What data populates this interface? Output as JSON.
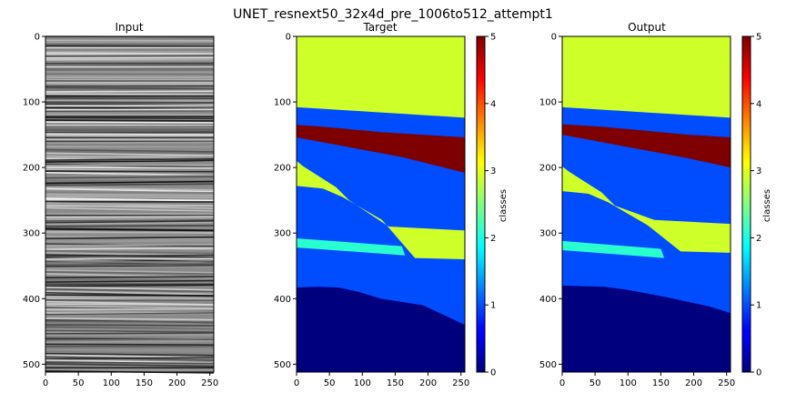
{
  "figure": {
    "title": "UNET_resnext50_32x4d_pre_1006to512_attempt1"
  },
  "chart_data": [
    {
      "type": "heatmap",
      "title": "Input",
      "xlabel": "",
      "ylabel": "",
      "xlim": [
        0,
        256
      ],
      "ylim": [
        512,
        0
      ],
      "xticks": [
        "0",
        "50",
        "100",
        "150",
        "200",
        "250"
      ],
      "yticks": [
        "0",
        "100",
        "200",
        "300",
        "400",
        "500"
      ],
      "cmap": "gray",
      "description_values": "seismic amplitude image"
    },
    {
      "type": "heatmap",
      "title": "Target",
      "xlabel": "",
      "ylabel": "",
      "xlim": [
        0,
        256
      ],
      "ylim": [
        512,
        0
      ],
      "xticks": [
        "0",
        "50",
        "100",
        "150",
        "200",
        "250"
      ],
      "yticks": [
        "0",
        "100",
        "200",
        "300",
        "400",
        "500"
      ],
      "cmap": "jet",
      "colorbar": {
        "label": "classes",
        "ticks": [
          "0",
          "1",
          "2",
          "3",
          "4",
          "5"
        ],
        "range": [
          0,
          5
        ]
      },
      "regions": [
        {
          "class": 3,
          "boundary_depth": [
            108,
            110,
            112,
            114,
            116,
            118,
            120,
            122,
            124
          ]
        },
        {
          "class": 5,
          "top_depth": [
            135,
            137,
            140,
            143,
            146,
            148,
            150,
            152,
            154
          ],
          "bottom_depth": [
            154,
            160,
            166,
            172,
            178,
            184,
            192,
            200,
            208
          ]
        },
        {
          "class": 3,
          "note": "dipping wedge",
          "from": [
            0,
            190
          ],
          "to": [
            255,
            310
          ]
        },
        {
          "class": 2,
          "note": "thin band",
          "depth_range": [
            308,
            322
          ],
          "x_range": [
            0,
            160
          ]
        },
        {
          "class": 0,
          "top_depth": [
            383,
            382,
            383,
            390,
            400,
            405,
            410,
            425,
            440
          ]
        }
      ]
    },
    {
      "type": "heatmap",
      "title": "Output",
      "xlabel": "",
      "ylabel": "",
      "xlim": [
        0,
        256
      ],
      "ylim": [
        512,
        0
      ],
      "xticks": [
        "0",
        "50",
        "100",
        "150",
        "200",
        "250"
      ],
      "yticks": [
        "0",
        "100",
        "200",
        "300",
        "400",
        "500"
      ],
      "cmap": "jet",
      "colorbar": {
        "label": "classes",
        "ticks": [
          "0",
          "1",
          "2",
          "3",
          "4",
          "5"
        ],
        "range": [
          0,
          5
        ]
      },
      "regions": [
        {
          "class": 3,
          "boundary_depth": [
            108,
            110,
            112,
            114,
            116,
            118,
            120,
            122,
            124
          ]
        },
        {
          "class": 5,
          "top_depth": [
            134,
            136,
            138,
            141,
            144,
            147,
            150,
            152,
            154
          ],
          "bottom_depth": [
            150,
            156,
            162,
            168,
            174,
            180,
            186,
            193,
            200
          ]
        },
        {
          "class": 3,
          "note": "dipping wedge",
          "from": [
            0,
            198
          ],
          "to": [
            255,
            300
          ]
        },
        {
          "class": 2,
          "note": "thin band",
          "depth_range": [
            312,
            326
          ],
          "x_range": [
            0,
            150
          ]
        },
        {
          "class": 0,
          "top_depth": [
            380,
            381,
            382,
            386,
            392,
            398,
            405,
            412,
            422
          ]
        }
      ]
    }
  ]
}
